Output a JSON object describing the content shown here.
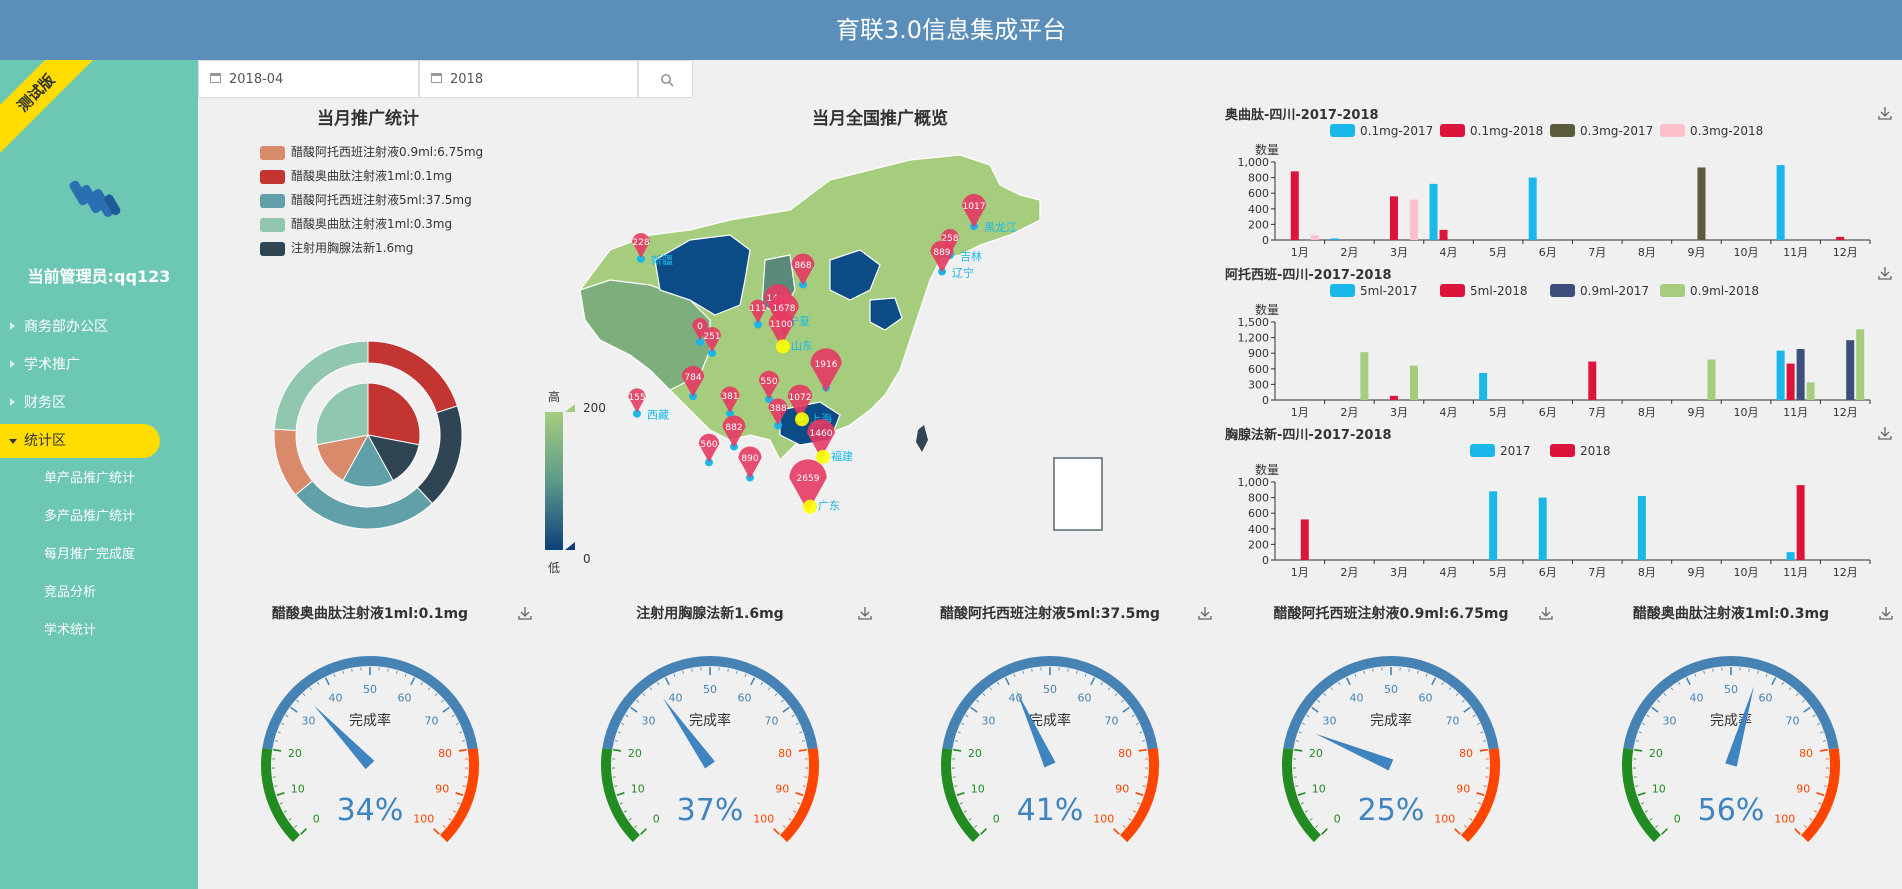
{
  "app": {
    "title": "育联3.0信息集成平台",
    "badge": "测试版",
    "admin_label": "当前管理员:qq123"
  },
  "sidebar": {
    "items": [
      {
        "label": "商务部办公区"
      },
      {
        "label": "学术推广"
      },
      {
        "label": "财务区"
      },
      {
        "label": "统计区"
      }
    ],
    "subitems": [
      {
        "label": "单产品推广统计"
      },
      {
        "label": "多产品推广统计"
      },
      {
        "label": "每月推广完成度"
      },
      {
        "label": "竞品分析"
      },
      {
        "label": "学术统计"
      }
    ]
  },
  "filters": {
    "month_value": "2018-04",
    "year_value": "2018"
  },
  "pie": {
    "title": "当月推广统计",
    "legend": [
      {
        "label": "醋酸阿托西班注射液0.9ml:6.75mg",
        "color": "#d98a6a"
      },
      {
        "label": "醋酸奥曲肽注射液1ml:0.1mg",
        "color": "#c23531"
      },
      {
        "label": "醋酸阿托西班注射液5ml:37.5mg",
        "color": "#61a0a8"
      },
      {
        "label": "醋酸奥曲肽注射液1ml:0.3mg",
        "color": "#91c7ae"
      },
      {
        "label": "注射用胸腺法新1.6mg",
        "color": "#2f4554"
      }
    ],
    "outer_values": [
      20,
      18,
      26,
      12,
      24
    ],
    "outer_colors": [
      "#c23531",
      "#2f4554",
      "#61a0a8",
      "#d98a6a",
      "#91c7ae"
    ],
    "inner_values": [
      28,
      14,
      16,
      14,
      28
    ],
    "inner_colors": [
      "#c23531",
      "#2f4554",
      "#61a0a8",
      "#d98a6a",
      "#91c7ae"
    ]
  },
  "map": {
    "title": "当月全国推广概览",
    "scale_high": "高",
    "scale_low": "低",
    "scale_max": "200",
    "scale_min": "0",
    "markers": [
      {
        "value": "228",
        "name": "新疆"
      },
      {
        "value": "155",
        "name": "西藏"
      },
      {
        "value": "1458",
        "name": "宁夏"
      },
      {
        "value": "868",
        "name": ""
      },
      {
        "value": "1017",
        "name": "黑龙江"
      },
      {
        "value": "258",
        "name": "吉林"
      },
      {
        "value": "889",
        "name": "辽宁"
      },
      {
        "value": "1678",
        "name": ""
      },
      {
        "value": "111",
        "name": ""
      },
      {
        "value": "1100",
        "name": "山东"
      },
      {
        "value": "1916",
        "name": ""
      },
      {
        "value": "550",
        "name": ""
      },
      {
        "value": "1072",
        "name": "上海"
      },
      {
        "value": "784",
        "name": ""
      },
      {
        "value": "381",
        "name": ""
      },
      {
        "value": "882",
        "name": ""
      },
      {
        "value": "388",
        "name": ""
      },
      {
        "value": "1460",
        "name": "福建"
      },
      {
        "value": "560",
        "name": ""
      },
      {
        "value": "2659",
        "name": "广东"
      },
      {
        "value": "890",
        "name": ""
      },
      {
        "value": "251",
        "name": ""
      },
      {
        "value": "0",
        "name": ""
      }
    ]
  },
  "bar_charts": [
    {
      "title": "奥曲肽-四川-2017-2018",
      "ylabel": "数量",
      "yticks": [
        "1,000",
        "800",
        "600",
        "400",
        "200",
        "0"
      ],
      "categories": [
        "1月",
        "2月",
        "3月",
        "4月",
        "5月",
        "6月",
        "7月",
        "8月",
        "9月",
        "10月",
        "11月",
        "12月"
      ],
      "series": [
        {
          "name": "0.1mg-2017",
          "color": "#1ab7ea",
          "values": [
            0,
            20,
            0,
            720,
            0,
            800,
            0,
            0,
            0,
            0,
            960,
            0
          ]
        },
        {
          "name": "0.1mg-2018",
          "color": "#dc143c",
          "values": [
            880,
            0,
            560,
            130,
            0,
            0,
            0,
            0,
            0,
            0,
            0,
            40
          ]
        },
        {
          "name": "0.3mg-2017",
          "color": "#5b5b3b",
          "values": [
            0,
            0,
            0,
            0,
            0,
            0,
            0,
            0,
            930,
            0,
            0,
            0
          ]
        },
        {
          "name": "0.3mg-2018",
          "color": "#ffc0cb",
          "values": [
            60,
            0,
            520,
            0,
            0,
            0,
            0,
            0,
            0,
            0,
            0,
            0
          ]
        }
      ],
      "ymax": 1000
    },
    {
      "title": "阿托西班-四川-2017-2018",
      "ylabel": "数量",
      "yticks": [
        "1,500",
        "1,200",
        "900",
        "600",
        "300",
        "0"
      ],
      "categories": [
        "1月",
        "2月",
        "3月",
        "4月",
        "5月",
        "6月",
        "7月",
        "8月",
        "9月",
        "10月",
        "11月",
        "12月"
      ],
      "series": [
        {
          "name": "5ml-2017",
          "color": "#1ab7ea",
          "values": [
            0,
            0,
            0,
            0,
            520,
            0,
            0,
            0,
            0,
            0,
            950,
            0
          ]
        },
        {
          "name": "5ml-2018",
          "color": "#dc143c",
          "values": [
            0,
            0,
            80,
            0,
            0,
            0,
            740,
            0,
            0,
            0,
            700,
            0
          ]
        },
        {
          "name": "0.9ml-2017",
          "color": "#3c4e7c",
          "values": [
            0,
            0,
            0,
            0,
            0,
            0,
            0,
            0,
            0,
            0,
            980,
            1150
          ]
        },
        {
          "name": "0.9ml-2018",
          "color": "#a6cd7d",
          "values": [
            0,
            920,
            660,
            0,
            0,
            0,
            0,
            0,
            780,
            0,
            340,
            1360
          ]
        }
      ],
      "ymax": 1500
    },
    {
      "title": "胸腺法新-四川-2017-2018",
      "ylabel": "数量",
      "yticks": [
        "1,000",
        "800",
        "600",
        "400",
        "200",
        "0"
      ],
      "categories": [
        "1月",
        "2月",
        "3月",
        "4月",
        "5月",
        "6月",
        "7月",
        "8月",
        "9月",
        "10月",
        "11月",
        "12月"
      ],
      "series": [
        {
          "name": "2017",
          "color": "#1ab7ea",
          "values": [
            0,
            0,
            0,
            0,
            880,
            800,
            0,
            820,
            0,
            0,
            100,
            0
          ]
        },
        {
          "name": "2018",
          "color": "#dc143c",
          "values": [
            520,
            0,
            0,
            0,
            0,
            0,
            0,
            0,
            0,
            0,
            960,
            0
          ]
        }
      ],
      "ymax": 1000
    }
  ],
  "gauges": [
    {
      "title": "醋酸奥曲肽注射液1ml:0.1mg",
      "label": "完成率",
      "value": 34,
      "display": "34%"
    },
    {
      "title": "注射用胸腺法新1.6mg",
      "label": "完成率",
      "value": 37,
      "display": "37%"
    },
    {
      "title": "醋酸阿托西班注射液5ml:37.5mg",
      "label": "完成率",
      "value": 41,
      "display": "41%"
    },
    {
      "title": "醋酸阿托西班注射液0.9ml:6.75mg",
      "label": "完成率",
      "value": 25,
      "display": "25%"
    },
    {
      "title": "醋酸奥曲肽注射液1ml:0.3mg",
      "label": "完成率",
      "value": 56,
      "display": "56%"
    }
  ],
  "gauge_ticks": [
    "0",
    "10",
    "20",
    "30",
    "40",
    "50",
    "60",
    "70",
    "80",
    "90",
    "100"
  ],
  "colors": {
    "header": "#5b8fb9",
    "sidebar": "#6cc7b5",
    "accent": "#ffdd00",
    "gauge_green": "#228b22",
    "gauge_blue": "#4682b4",
    "gauge_red": "#ff4500"
  }
}
